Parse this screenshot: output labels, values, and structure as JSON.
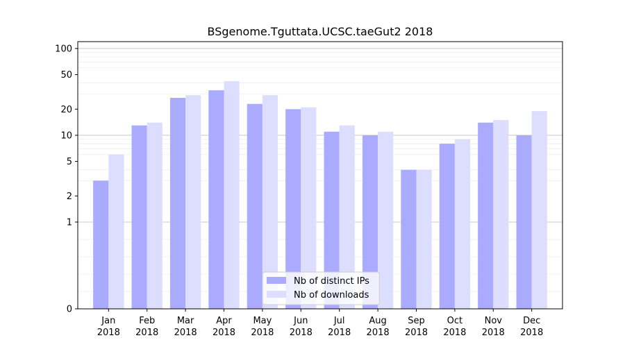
{
  "chart_data": {
    "type": "bar",
    "title": "BSgenome.Tguttata.UCSC.taeGut2 2018",
    "xlabel": "",
    "ylabel": "",
    "categories": [
      [
        "Jan",
        "2018"
      ],
      [
        "Feb",
        "2018"
      ],
      [
        "Mar",
        "2018"
      ],
      [
        "Apr",
        "2018"
      ],
      [
        "May",
        "2018"
      ],
      [
        "Jun",
        "2018"
      ],
      [
        "Jul",
        "2018"
      ],
      [
        "Aug",
        "2018"
      ],
      [
        "Sep",
        "2018"
      ],
      [
        "Oct",
        "2018"
      ],
      [
        "Nov",
        "2018"
      ],
      [
        "Dec",
        "2018"
      ]
    ],
    "series": [
      {
        "name": "Nb of distinct IPs",
        "color": "#aaaaff",
        "values": [
          3,
          13,
          27,
          33,
          23,
          20,
          11,
          10,
          4,
          8,
          14,
          10
        ]
      },
      {
        "name": "Nb of downloads",
        "color": "#ddddff",
        "values": [
          6,
          14,
          29,
          42,
          29,
          21,
          13,
          11,
          4,
          9,
          15,
          19
        ]
      }
    ],
    "y_scale": "symlog",
    "ylim": [
      0,
      120
    ],
    "yticks": [
      0,
      1,
      2,
      5,
      10,
      20,
      50,
      100
    ],
    "grid": true,
    "legend_position": "lower center"
  }
}
